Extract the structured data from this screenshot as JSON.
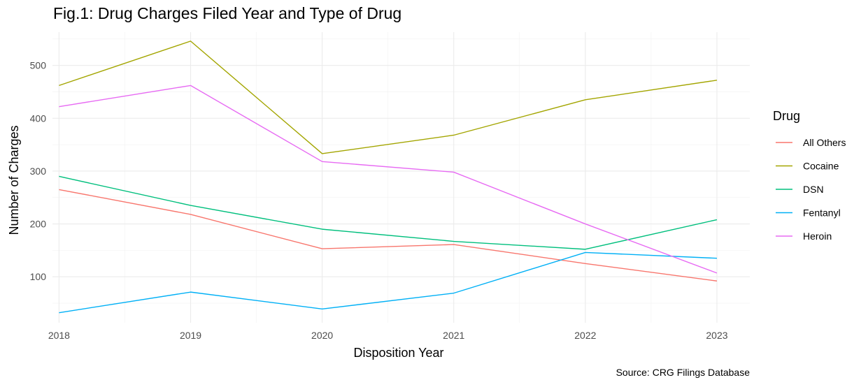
{
  "chart_data": {
    "type": "line",
    "title": "Fig.1: Drug Charges Filed Year and Type of Drug",
    "xlabel": "Disposition Year",
    "ylabel": "Number of Charges",
    "caption": "Source: CRG Filings Database",
    "x": [
      2018,
      2019,
      2020,
      2021,
      2022,
      2023
    ],
    "xlim": [
      2017.95,
      2023.25
    ],
    "ylim": [
      13,
      563
    ],
    "yticks": [
      100,
      200,
      300,
      400,
      500
    ],
    "grid": true,
    "legend": {
      "title": "Drug",
      "position": "right"
    },
    "series": [
      {
        "name": "All Others",
        "color": "#F8766D",
        "values": [
          265,
          218,
          153,
          161,
          125,
          92
        ]
      },
      {
        "name": "Cocaine",
        "color": "#A3A500",
        "values": [
          462,
          546,
          333,
          368,
          435,
          472
        ]
      },
      {
        "name": "DSN",
        "color": "#00BF7D",
        "values": [
          290,
          235,
          190,
          167,
          152,
          208
        ]
      },
      {
        "name": "Fentanyl",
        "color": "#00B0F6",
        "values": [
          32,
          71,
          39,
          69,
          146,
          135
        ]
      },
      {
        "name": "Heroin",
        "color": "#E76BF3",
        "values": [
          422,
          462,
          318,
          298,
          200,
          107
        ]
      }
    ]
  }
}
